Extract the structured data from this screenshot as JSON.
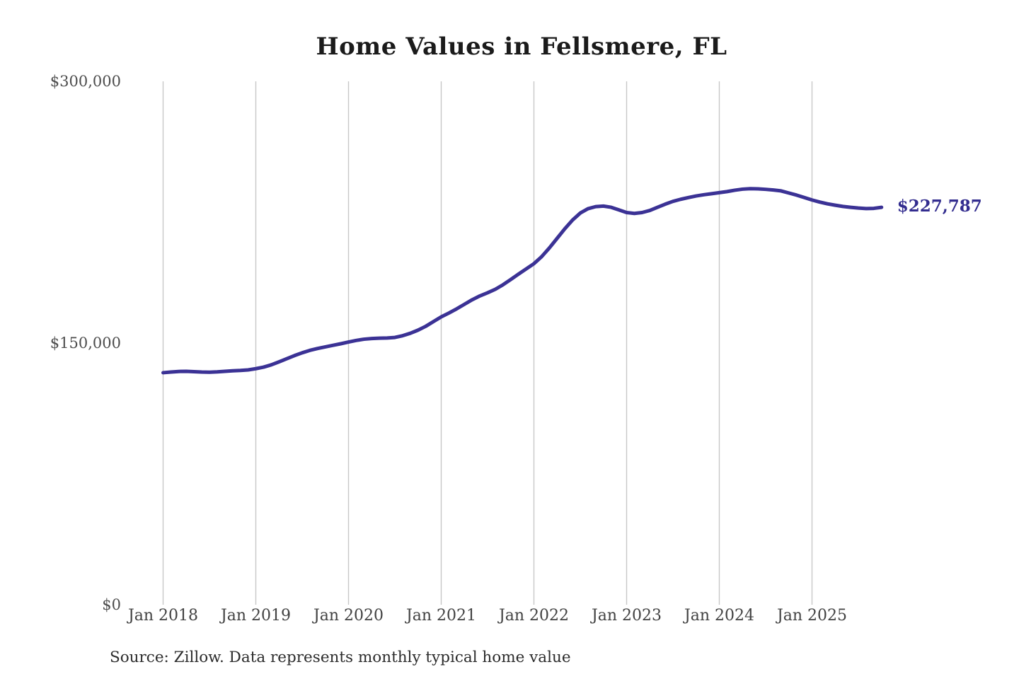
{
  "chart": {
    "title": "Home Values in Fellsmere, FL",
    "end_label": "$227,787",
    "source_note": "Source: Zillow. Data represents monthly typical home value"
  },
  "colors": {
    "line": "#3b3295",
    "end_label": "#332d8f",
    "gridline": "#c7c7c7",
    "y_tick_text": "#4d4d4d",
    "x_tick_text": "#424242",
    "title_text": "#1b1b1b",
    "background": "#ffffff"
  },
  "chart_data": {
    "type": "line",
    "title": "Home Values in Fellsmere, FL",
    "xlabel": "",
    "ylabel": "",
    "ylim": [
      0,
      300000
    ],
    "ytick_values": [
      0,
      150000,
      300000
    ],
    "ytick_labels": [
      "$0",
      "$150,000",
      "$300,000"
    ],
    "xtick_labels": [
      "Jan 2018",
      "Jan 2019",
      "Jan 2020",
      "Jan 2021",
      "Jan 2022",
      "Jan 2023",
      "Jan 2024",
      "Jan 2025"
    ],
    "grid": "vertical-only",
    "legend": "none",
    "series": [
      {
        "name": "Monthly typical home value",
        "start_month": "2018-01",
        "frequency": "monthly",
        "last_value": 227787,
        "last_value_label": "$227,787",
        "values": [
          133000,
          133400,
          133700,
          133800,
          133600,
          133400,
          133300,
          133500,
          133800,
          134100,
          134300,
          134600,
          135300,
          136200,
          137500,
          139200,
          141000,
          142800,
          144400,
          145800,
          146900,
          147800,
          148700,
          149600,
          150600,
          151500,
          152200,
          152600,
          152800,
          152900,
          153200,
          154200,
          155600,
          157400,
          159600,
          162300,
          165000,
          167200,
          169600,
          172200,
          174800,
          177000,
          178800,
          180800,
          183400,
          186400,
          189500,
          192500,
          195500,
          199500,
          204500,
          210000,
          215500,
          220500,
          224500,
          227000,
          228200,
          228500,
          227800,
          226300,
          224800,
          224300,
          224800,
          226000,
          227800,
          229600,
          231200,
          232400,
          233400,
          234300,
          235000,
          235600,
          236200,
          236800,
          237600,
          238200,
          238500,
          238400,
          238100,
          237700,
          237200,
          236000,
          234800,
          233400,
          232000,
          230800,
          229800,
          229000,
          228300,
          227800,
          227400,
          227100,
          227200,
          227787
        ]
      }
    ]
  }
}
